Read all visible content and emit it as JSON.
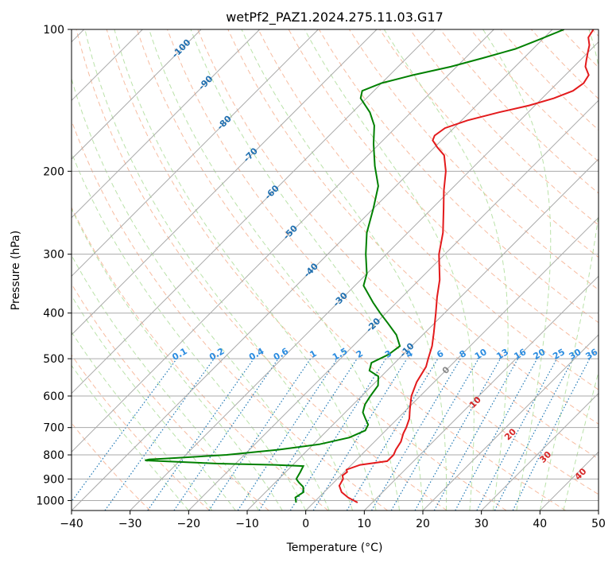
{
  "chart_data": {
    "type": "line",
    "subtype": "skew-t log-p diagram",
    "title": "wetPf2_PAZ1.2024.275.11.03.G17",
    "xlabel": "Temperature (°C)",
    "ylabel": "Pressure (hPa)",
    "xlim": [
      -40,
      50
    ],
    "ylim": [
      1050,
      100
    ],
    "y_scale": "log",
    "grid": true,
    "x_ticks": [
      -40,
      -30,
      -20,
      -10,
      0,
      10,
      20,
      30,
      40,
      50
    ],
    "y_ticks": [
      100,
      200,
      300,
      400,
      500,
      600,
      700,
      800,
      900,
      1000
    ],
    "series": [
      {
        "key": "temperature",
        "color": "#e31a1c",
        "pressure": [
          1010,
          985,
          960,
          930,
          900,
          885,
          870,
          860,
          840,
          825,
          800,
          780,
          750,
          720,
          700,
          670,
          640,
          600,
          560,
          520,
          500,
          470,
          440,
          400,
          370,
          340,
          300,
          270,
          240,
          220,
          200,
          185,
          178,
          172,
          168,
          162,
          156,
          150,
          145,
          140,
          135,
          130,
          125,
          120,
          116,
          112,
          108,
          104,
          100
        ],
        "temperature": [
          7.5,
          5,
          3,
          1.5,
          1,
          0.3,
          0.5,
          0,
          1.5,
          5.5,
          5.5,
          5,
          4.5,
          3.5,
          3,
          2,
          0.5,
          -1.5,
          -3,
          -4,
          -5,
          -6.5,
          -8.5,
          -11.5,
          -14,
          -16.5,
          -21,
          -24,
          -28,
          -31,
          -34,
          -37,
          -39.5,
          -41.5,
          -42,
          -41.5,
          -39,
          -35,
          -31,
          -28,
          -26,
          -25.5,
          -26,
          -28,
          -29,
          -30,
          -31,
          -32.5,
          -33
        ]
      },
      {
        "key": "dewpoint",
        "color": "#008000",
        "pressure": [
          1010,
          985,
          960,
          935,
          915,
          900,
          870,
          845,
          840,
          835,
          822,
          818,
          815,
          800,
          780,
          760,
          735,
          710,
          690,
          670,
          650,
          625,
          600,
          570,
          545,
          530,
          510,
          490,
          470,
          445,
          420,
          400,
          380,
          350,
          330,
          300,
          270,
          240,
          215,
          195,
          175,
          160,
          150,
          140,
          135,
          130,
          125,
          120,
          115,
          110,
          105,
          100
        ],
        "temperature": [
          -3,
          -4,
          -3.5,
          -4.5,
          -6,
          -7,
          -7.5,
          -8,
          -13,
          -23,
          -36,
          -35.5,
          -33,
          -23,
          -15,
          -9,
          -5,
          -3.5,
          -4,
          -5.5,
          -7,
          -8,
          -8.5,
          -9,
          -10.5,
          -13,
          -14,
          -12.5,
          -12,
          -14.5,
          -18,
          -21,
          -24,
          -28.5,
          -30,
          -33.5,
          -37,
          -40,
          -43,
          -47,
          -51,
          -54,
          -57,
          -61,
          -62,
          -60,
          -56,
          -51,
          -47,
          -43,
          -40.5,
          -38
        ]
      }
    ],
    "isotherm_labels": [
      "-100",
      "-90",
      "-80",
      "-70",
      "-60",
      "-50",
      "-40",
      "-30",
      "-20",
      "-10"
    ],
    "mixing_ratio_labels": [
      "0.1",
      "0.2",
      "0.4",
      "0.6",
      "1",
      "1.5",
      "2",
      "3",
      "4",
      "6",
      "8",
      "10",
      "13",
      "16",
      "20",
      "25",
      "30",
      "36"
    ],
    "red_labels": [
      "10",
      "20",
      "30",
      "40"
    ],
    "gray_labels": [
      "0"
    ],
    "colors": {
      "temperature": "#e31a1c",
      "dewpoint": "#008000",
      "isotherm": "#aaaaaa",
      "dry_adiabat": "#f4a582",
      "moist_adiabat": "#b2dfa0",
      "mixing_ratio": "#1f78b4",
      "isotherm_label": "#1f6fb0",
      "mixing_label": "#2b8ce0",
      "red_label": "#d62728"
    }
  }
}
